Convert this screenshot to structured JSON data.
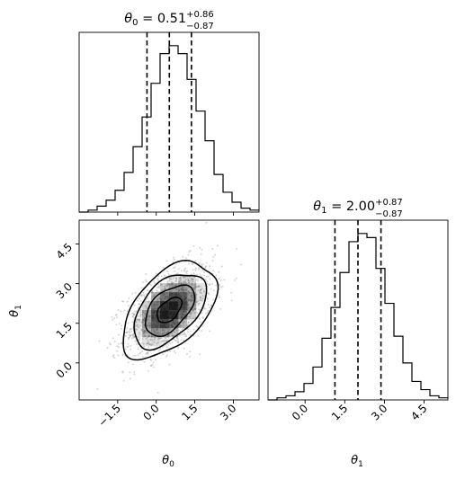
{
  "chart_data": {
    "type": "corner",
    "parameters": [
      "θ0",
      "θ1"
    ],
    "panels": [
      {
        "id": "hist-theta0",
        "type": "histogram",
        "title": {
          "param": "θ",
          "sub": "0",
          "eq": " = 0.51",
          "sup": "+0.86",
          "low": "−0.87"
        },
        "xlim": [
          -3.0,
          4.0
        ],
        "quantiles": [
          -0.36,
          0.51,
          1.37
        ],
        "bin_edges": [
          -3.0,
          -2.65,
          -2.3,
          -1.95,
          -1.6,
          -1.25,
          -0.9,
          -0.55,
          -0.2,
          0.15,
          0.5,
          0.85,
          1.2,
          1.55,
          1.9,
          2.25,
          2.6,
          2.95,
          3.3,
          3.65,
          4.0
        ],
        "counts": [
          0,
          1,
          3,
          6,
          11,
          20,
          33,
          48,
          65,
          80,
          84,
          80,
          67,
          51,
          36,
          19,
          10,
          5,
          2,
          1
        ]
      },
      {
        "id": "hist-theta1",
        "type": "histogram",
        "title": {
          "param": "θ",
          "sub": "1",
          "eq": " = 2.00",
          "sup": "+0.87",
          "low": "−0.87"
        },
        "xlim": [
          -1.4,
          5.4
        ],
        "quantiles": [
          1.13,
          2.0,
          2.87
        ],
        "bin_edges": [
          -1.4,
          -1.06,
          -0.72,
          -0.38,
          -0.04,
          0.3,
          0.64,
          0.98,
          1.32,
          1.66,
          2.0,
          2.34,
          2.68,
          3.02,
          3.36,
          3.7,
          4.04,
          4.38,
          4.72,
          5.06,
          5.4
        ],
        "counts": [
          0,
          1,
          2,
          4,
          8,
          16,
          30,
          45,
          62,
          77,
          81,
          79,
          64,
          47,
          31,
          18,
          9,
          5,
          2,
          1
        ]
      },
      {
        "id": "scatter-theta0-theta1",
        "type": "2d-density",
        "xlim": [
          -3.0,
          4.0
        ],
        "ylim": [
          -1.4,
          5.4
        ],
        "mean": [
          0.51,
          2.0
        ],
        "sigma": [
          0.87,
          0.87
        ],
        "correlation": 0.5
      }
    ],
    "axes": {
      "x_ticks": [
        "−1.5",
        "0.0",
        "1.5",
        "3.0"
      ],
      "x_tick_values": [
        -1.5,
        0.0,
        1.5,
        3.0
      ],
      "theta1_ticks": [
        "0.0",
        "1.5",
        "3.0",
        "4.5"
      ],
      "theta1_tick_values": [
        0.0,
        1.5,
        3.0,
        4.5
      ],
      "xlabel_left": {
        "param": "θ",
        "sub": "0"
      },
      "xlabel_right": {
        "param": "θ",
        "sub": "1"
      },
      "ylabel": {
        "param": "θ",
        "sub": "1"
      }
    }
  }
}
